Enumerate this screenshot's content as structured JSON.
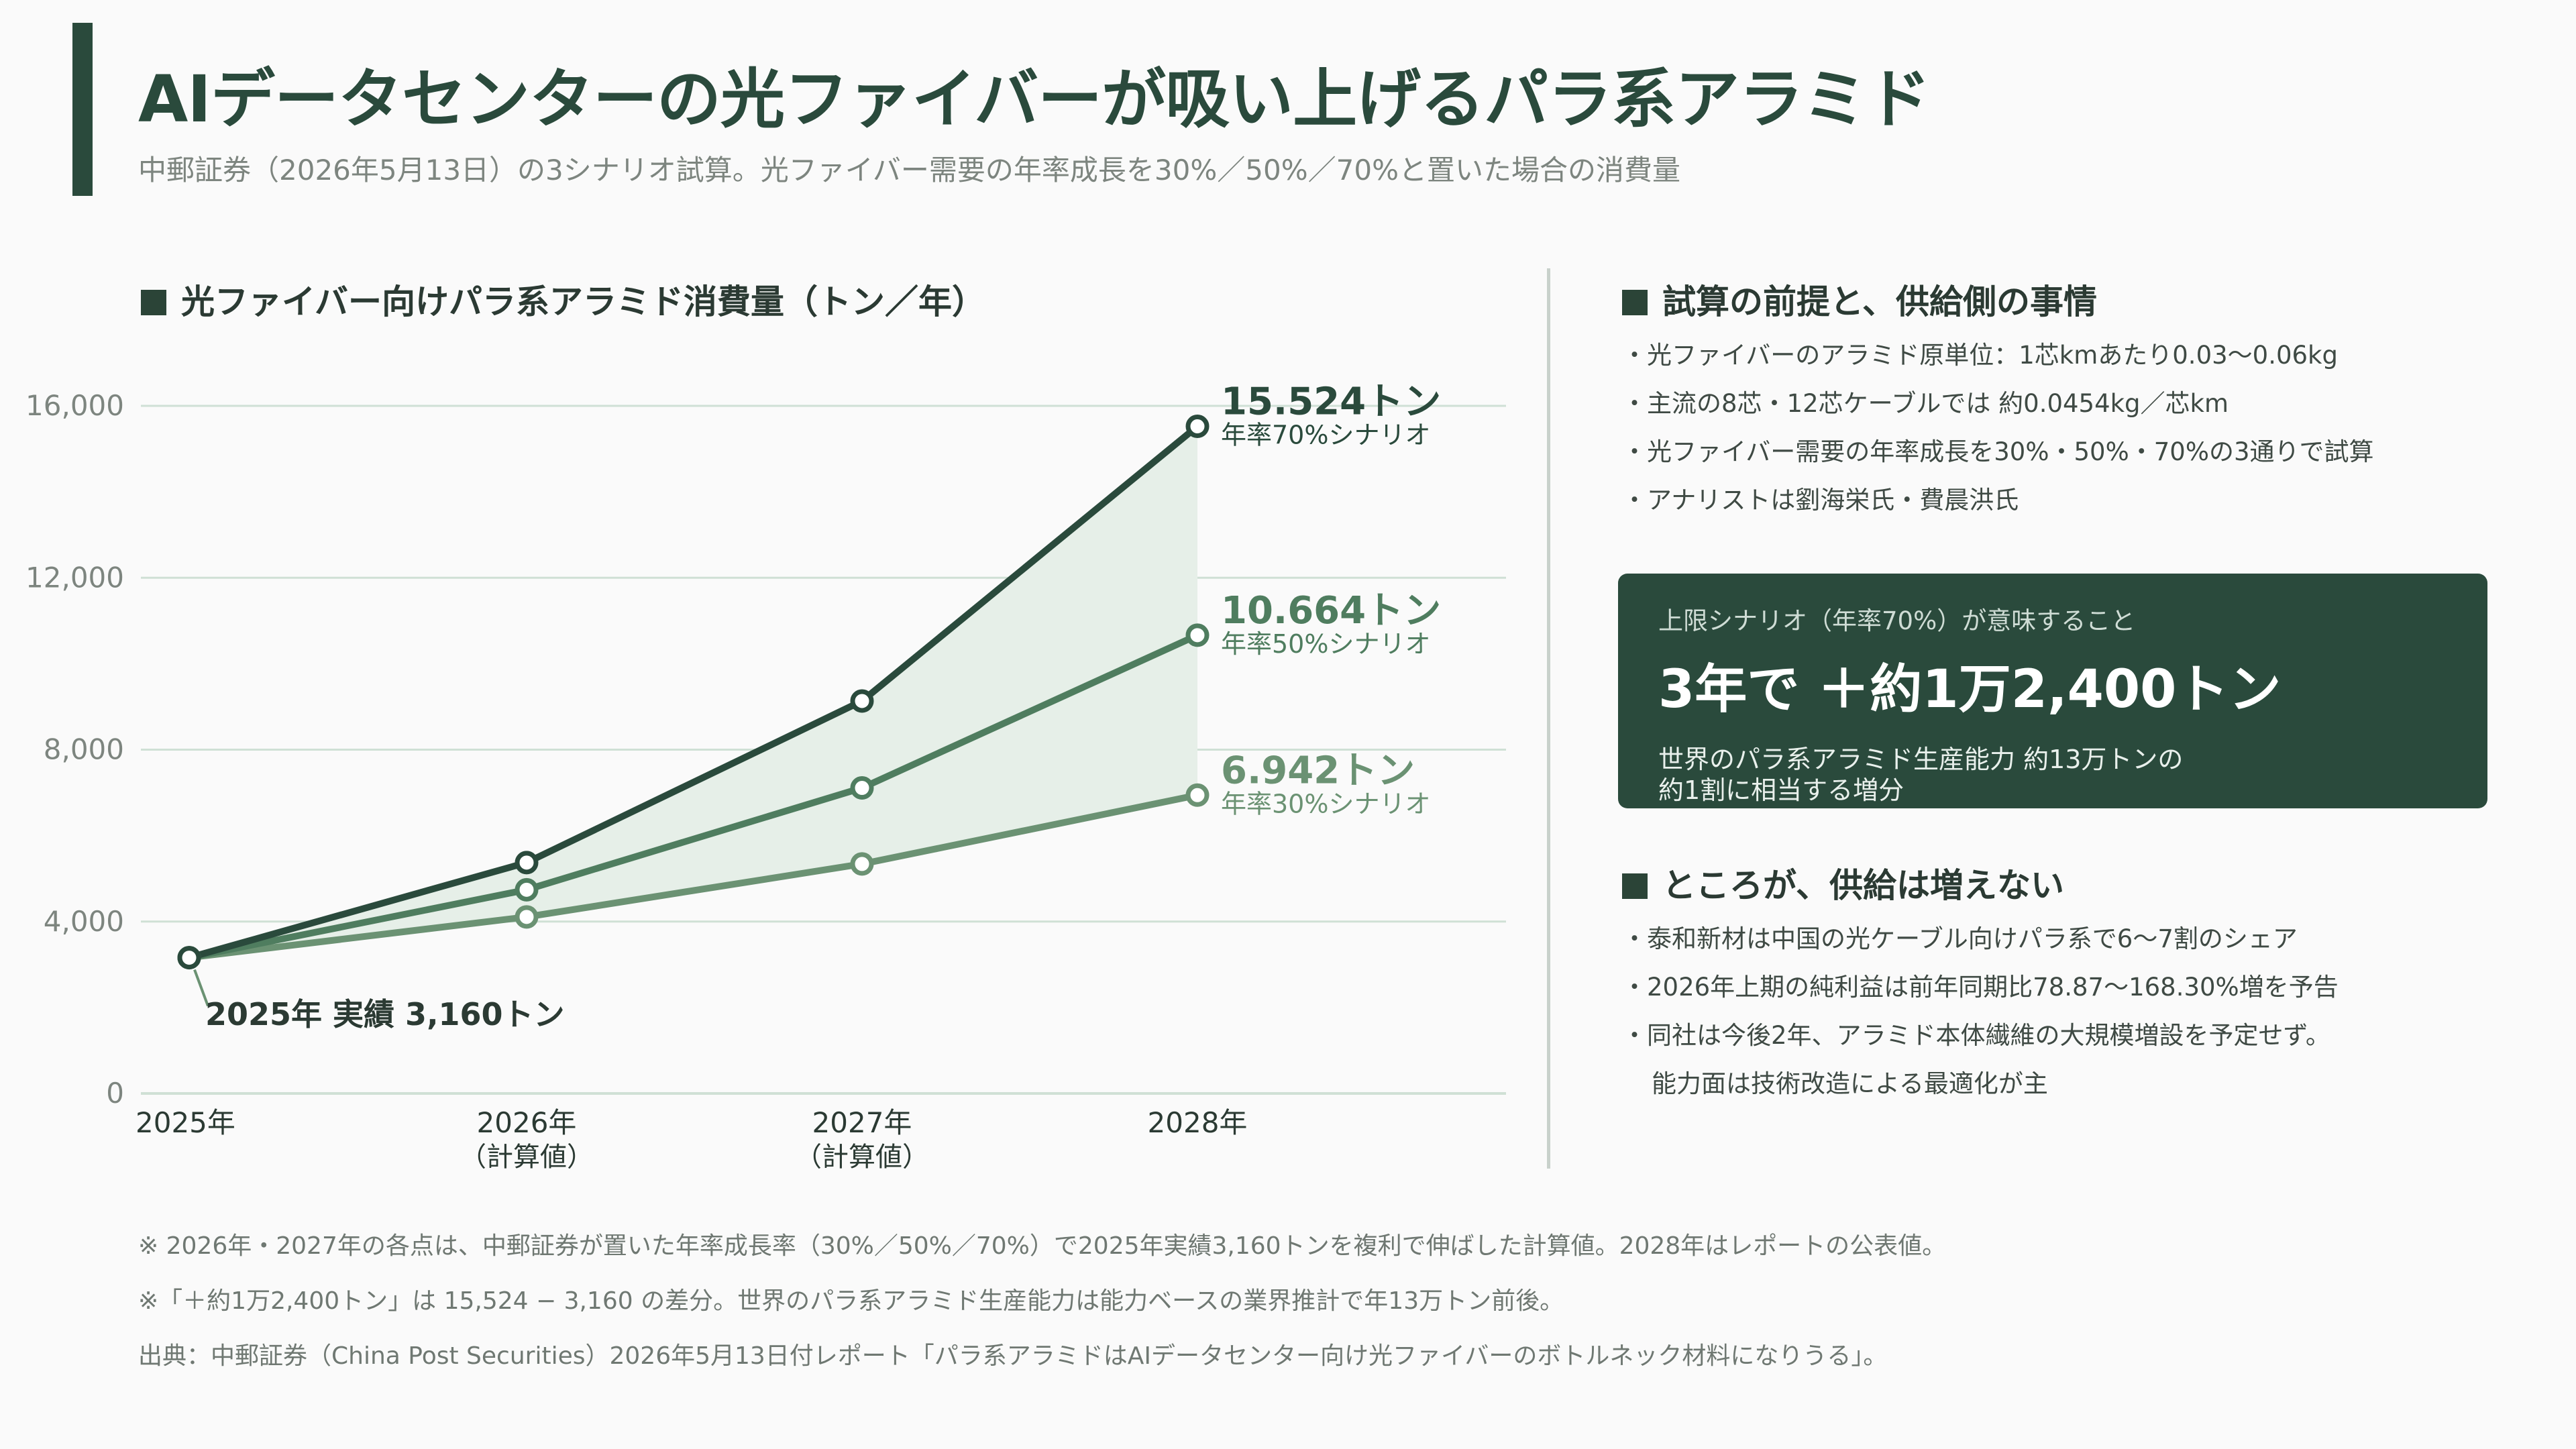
{
  "header": {
    "title": "AIデータセンターの光ファイバーが吸い上げるパラ系アラミド",
    "subtitle": "中郵証券（2026年5月13日）の3シナリオ試算。光ファイバー需要の年率成長を30%／50%／70%と置いた場合の消費量"
  },
  "chart_section": {
    "heading": "光ファイバー向けパラ系アラミド消費量（トン／年）"
  },
  "chart_data": {
    "type": "line",
    "x": [
      "2025年",
      "2026年",
      "2027年",
      "2028年"
    ],
    "x_sublabels": [
      "",
      "（計算値）",
      "（計算値）",
      ""
    ],
    "ylim": [
      0,
      16000
    ],
    "yticks": [
      0,
      4000,
      8000,
      12000,
      16000
    ],
    "ytick_labels": [
      "0",
      "4,000",
      "8,000",
      "12,000",
      "16,000"
    ],
    "grid": true,
    "series": [
      {
        "name": "年率70%シナリオ",
        "values": [
          3160,
          5372,
          9132,
          15524
        ],
        "color": "#2a4a3c",
        "end_label": "15.524トン"
      },
      {
        "name": "年率50%シナリオ",
        "values": [
          3160,
          4740,
          7110,
          10664
        ],
        "color": "#4f7d5f",
        "end_label": "10.664トン"
      },
      {
        "name": "年率30%シナリオ",
        "values": [
          3160,
          4108,
          5340,
          6942
        ],
        "color": "#6b9273",
        "end_label": "6.942トン"
      }
    ],
    "annotation": "2025年 実績 3,160トン",
    "colors": {
      "band": "#e6efe8",
      "grid": "#cfe0d5",
      "axis_text": "#7d857f"
    }
  },
  "side": {
    "heading1": "試算の前提と、供給側の事情",
    "bullets1": [
      "・光ファイバーのアラミド原単位：1芯kmあたり0.03〜0.06kg",
      "・主流の8芯・12芯ケーブルでは 約0.0454kg／芯km",
      "・光ファイバー需要の年率成長を30%・50%・70%の3通りで試算",
      "・アナリストは劉海栄氏・費晨洪氏"
    ],
    "card": {
      "kicker": "上限シナリオ（年率70%）が意味すること",
      "big": "3年で ＋約1万2,400トン",
      "desc1": "世界のパラ系アラミド生産能力 約13万トンの",
      "desc2": "約1割に相当する増分"
    },
    "heading2": "ところが、供給は増えない",
    "bullets2": [
      "・泰和新材は中国の光ケーブル向けパラ系で6〜7割のシェア",
      "・2026年上期の純利益は前年同期比78.87〜168.30%増を予告",
      "・同社は今後2年、アラミド本体繊維の大規模増設を予定せず。",
      "能力面は技術改造による最適化が主"
    ]
  },
  "notes": [
    "※ 2026年・2027年の各点は、中郵証券が置いた年率成長率（30%／50%／70%）で2025年実績3,160トンを複利で伸ばした計算値。2028年はレポートの公表値。",
    "※「＋約1万2,400トン」は 15,524 − 3,160 の差分。世界のパラ系アラミド生産能力は能力ベースの業界推計で年13万トン前後。",
    "出典：中郵証券（China Post Securities）2026年5月13日付レポート「パラ系アラミドはAIデータセンター向け光ファイバーのボトルネック材料になりうる」。"
  ]
}
